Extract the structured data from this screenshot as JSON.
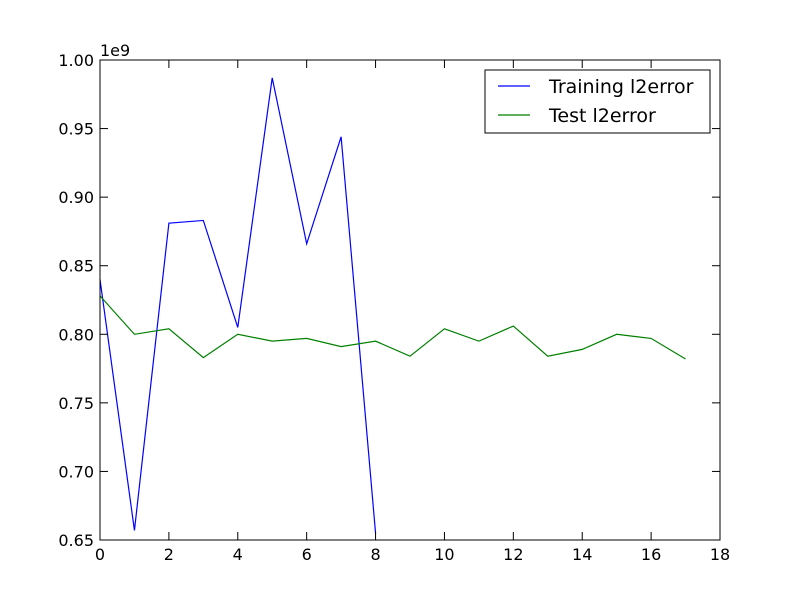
{
  "chart_data": {
    "type": "line",
    "title": "",
    "xlabel": "",
    "ylabel": "",
    "y_offset_label": "1e9",
    "xlim": [
      0,
      18
    ],
    "ylim": [
      0.65,
      1.0
    ],
    "x_ticks": [
      0,
      2,
      4,
      6,
      8,
      10,
      12,
      14,
      16,
      18
    ],
    "x_tick_labels": [
      "0",
      "2",
      "4",
      "6",
      "8",
      "10",
      "12",
      "14",
      "16",
      "18"
    ],
    "y_ticks": [
      0.65,
      0.7,
      0.75,
      0.8,
      0.85,
      0.9,
      0.95,
      1.0
    ],
    "y_tick_labels": [
      "0.65",
      "0.70",
      "0.75",
      "0.80",
      "0.85",
      "0.90",
      "0.95",
      "1.00"
    ],
    "grid": false,
    "legend_position": "top-right",
    "series": [
      {
        "name": "Training l2error",
        "color": "#0000ff",
        "x": [
          0,
          1,
          2,
          3,
          4,
          5,
          6,
          7,
          8
        ],
        "y": [
          0.84,
          0.657,
          0.881,
          0.883,
          0.805,
          0.987,
          0.866,
          0.944,
          0.655
        ]
      },
      {
        "name": "Test l2error",
        "color": "#008000",
        "x": [
          0,
          1,
          2,
          3,
          4,
          5,
          6,
          7,
          8,
          9,
          10,
          11,
          12,
          13,
          14,
          15,
          16,
          17
        ],
        "y": [
          0.828,
          0.8,
          0.804,
          0.783,
          0.8,
          0.795,
          0.797,
          0.791,
          0.795,
          0.784,
          0.804,
          0.795,
          0.806,
          0.784,
          0.789,
          0.8,
          0.797,
          0.782
        ]
      }
    ]
  }
}
